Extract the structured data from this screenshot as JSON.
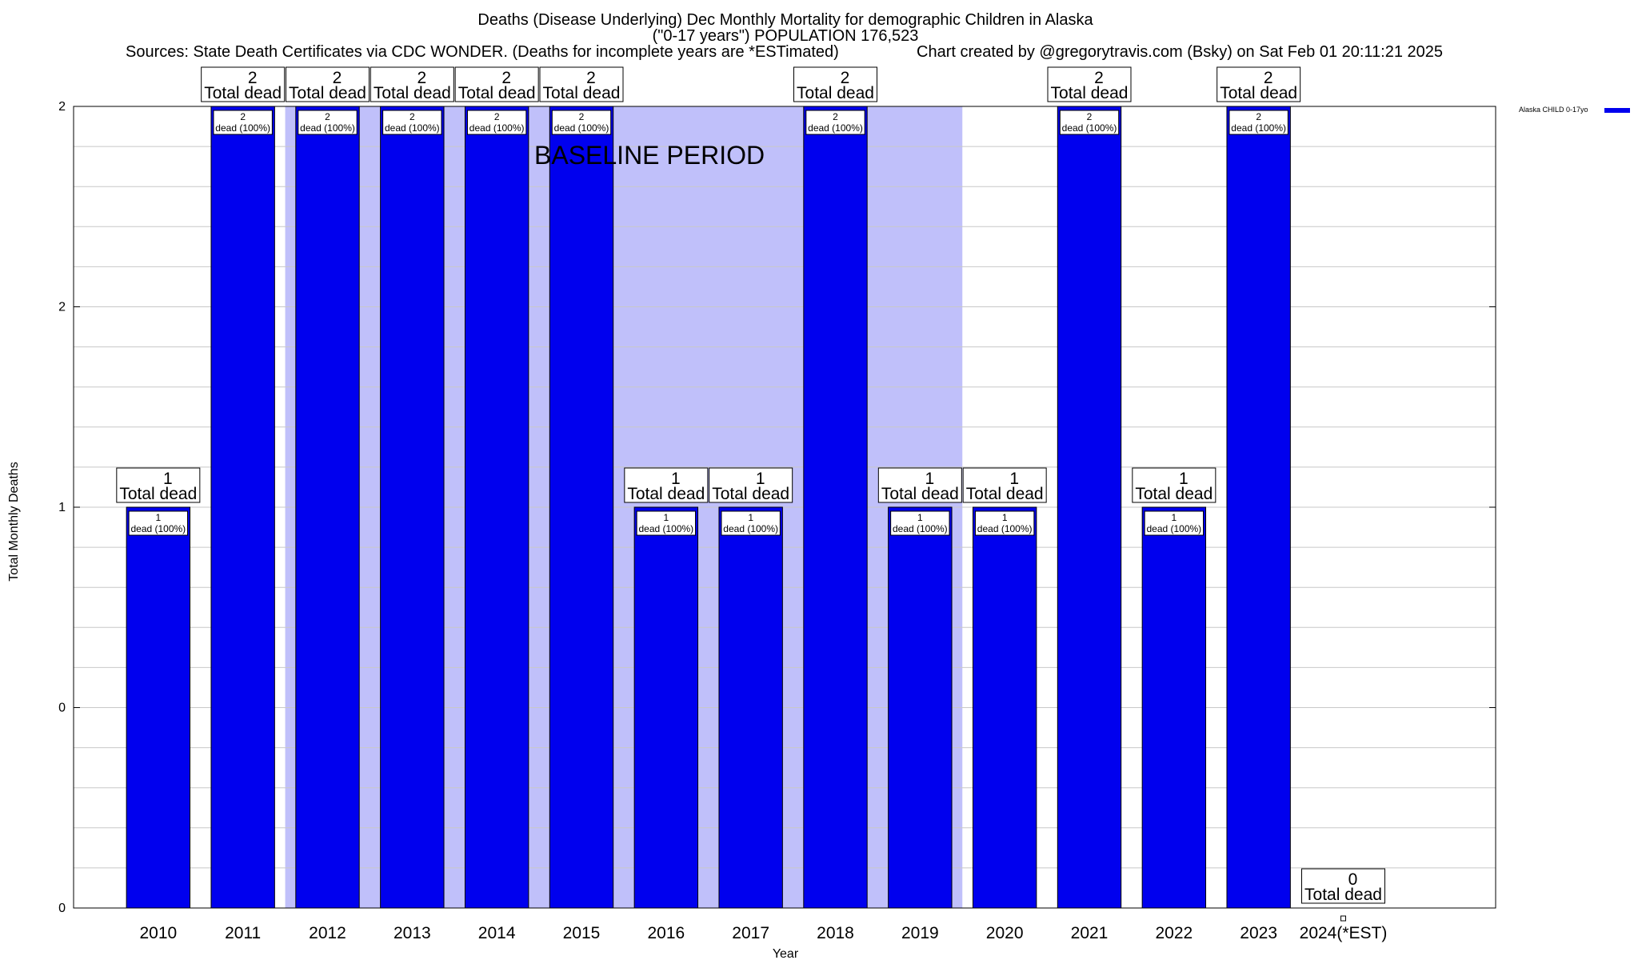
{
  "chart_data": {
    "type": "bar",
    "title_lines": [
      "Deaths (Disease Underlying) Dec Monthly Mortality for demographic Children in Alaska",
      "(\"0-17 years\") POPULATION 176,523"
    ],
    "sources_text": "Sources: State Death Certificates via CDC WONDER. (Deaths for incomplete years are *ESTimated)",
    "credit_text": "Chart created by @gregorytravis.com (Bsky) on Sat Feb 01 20:11:21 2025",
    "xlabel": "Year",
    "ylabel": "Total Monthly Deaths",
    "ytick_labels": [
      "0",
      "0",
      "1",
      "2",
      "2"
    ],
    "ylim": [
      0,
      2
    ],
    "categories": [
      "2010",
      "2011",
      "2012",
      "2013",
      "2014",
      "2015",
      "2016",
      "2017",
      "2018",
      "2019",
      "2020",
      "2021",
      "2022",
      "2023",
      "2024(*EST)"
    ],
    "series": [
      {
        "name": "Alaska CHILD 0-17yo",
        "color": "#0000ee",
        "values": [
          1,
          2,
          2,
          2,
          2,
          2,
          1,
          1,
          2,
          1,
          1,
          2,
          1,
          2,
          0
        ]
      }
    ],
    "total_label_suffix": "Total dead",
    "bar_label_suffix": "dead (100%)",
    "baseline": {
      "label": "BASELINE PERIOD",
      "start": "2012",
      "end": "2019",
      "color": "#c0c0fa"
    },
    "legend_position": "top-right",
    "grid": true
  }
}
